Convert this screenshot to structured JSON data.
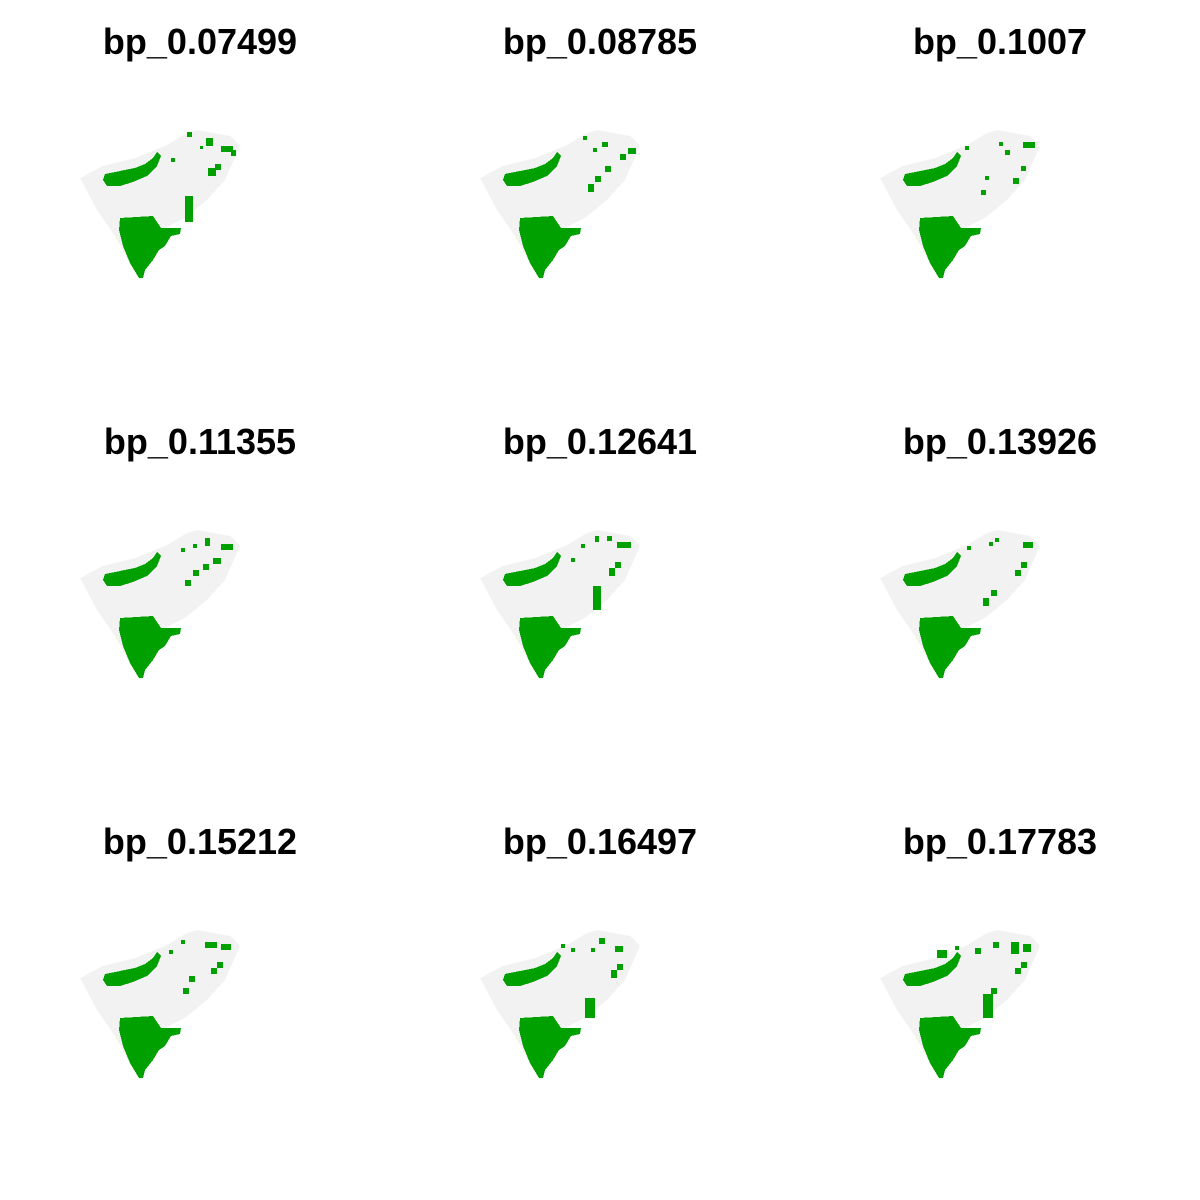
{
  "colors": {
    "background": "#ffffff",
    "land": "#f2f2f2",
    "presence": "#00a000"
  },
  "panels": [
    {
      "title": "bp_0.07499",
      "variant": 0
    },
    {
      "title": "bp_0.08785",
      "variant": 1
    },
    {
      "title": "bp_0.1007",
      "variant": 2
    },
    {
      "title": "bp_0.11355",
      "variant": 3
    },
    {
      "title": "bp_0.12641",
      "variant": 4
    },
    {
      "title": "bp_0.13926",
      "variant": 5
    },
    {
      "title": "bp_0.15212",
      "variant": 6
    },
    {
      "title": "bp_0.16497",
      "variant": 7
    },
    {
      "title": "bp_0.17783",
      "variant": 8
    }
  ]
}
